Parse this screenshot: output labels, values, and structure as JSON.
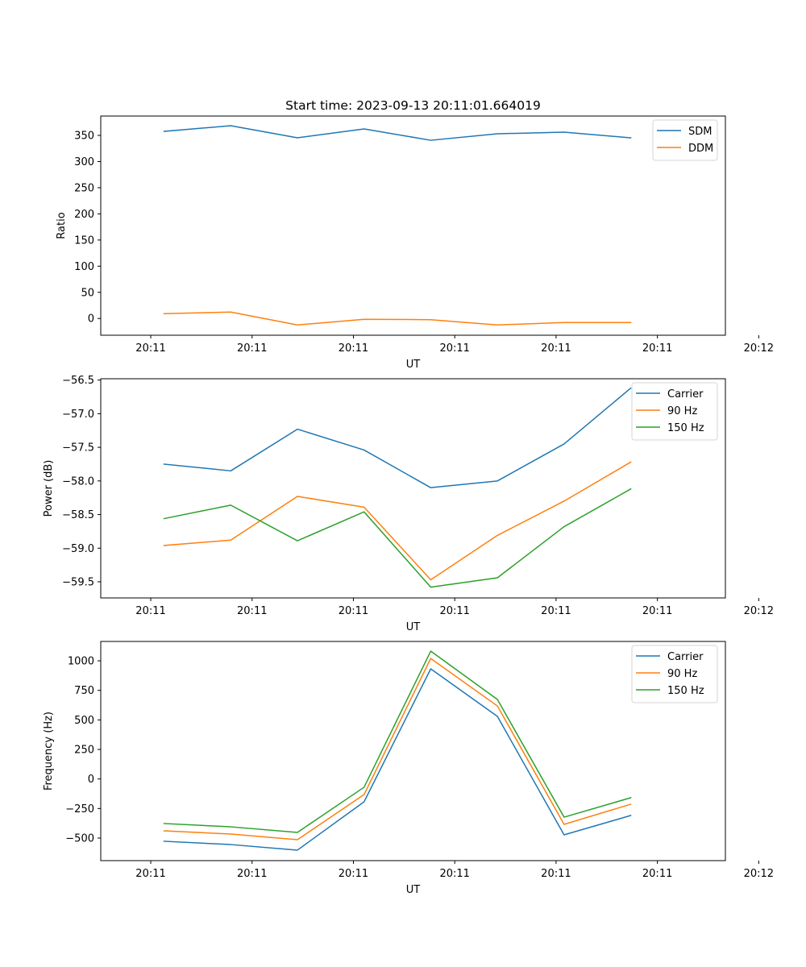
{
  "figure": {
    "title": "Start time: 2023-09-13 20:11:01.664019"
  },
  "colors": {
    "blue": "#1f77b4",
    "orange": "#ff7f0e",
    "green": "#2ca02c"
  },
  "chart_data": [
    {
      "type": "line",
      "title": "Start time: 2023-09-13 20:11:01.664019",
      "xlabel": "UT",
      "ylabel": "Ratio",
      "x_index": [
        0,
        1,
        2,
        3,
        4,
        5,
        6,
        7
      ],
      "x_ticks": [
        -0.2,
        1.32,
        2.84,
        4.36,
        5.88,
        7.4,
        8.92
      ],
      "x_tick_labels": [
        "20:11",
        "20:11",
        "20:11",
        "20:11",
        "20:11",
        "20:11",
        "20:12"
      ],
      "xlim": [
        -0.95,
        8.42
      ],
      "y_ticks": [
        0,
        50,
        100,
        150,
        200,
        250,
        300,
        350
      ],
      "y_tick_labels": [
        "0",
        "50",
        "100",
        "150",
        "200",
        "250",
        "300",
        "350"
      ],
      "ylim": [
        -32,
        387
      ],
      "grid": false,
      "legend_position": "top-right",
      "series": [
        {
          "name": "SDM",
          "color": "#1f77b4",
          "values": [
            357.7,
            368.5,
            345.4,
            362.4,
            340.7,
            353.1,
            356.2,
            345.4
          ]
        },
        {
          "name": "DDM",
          "color": "#ff7f0e",
          "values": [
            9.3,
            12.3,
            -12.3,
            -1.5,
            -2.3,
            -12.3,
            -7.7,
            -7.7
          ]
        }
      ]
    },
    {
      "type": "line",
      "title": "",
      "xlabel": "UT",
      "ylabel": "Power (dB)",
      "x_index": [
        0,
        1,
        2,
        3,
        4,
        5,
        6,
        7
      ],
      "x_ticks": [
        -0.2,
        1.32,
        2.84,
        4.36,
        5.88,
        7.4,
        8.92
      ],
      "x_tick_labels": [
        "20:11",
        "20:11",
        "20:11",
        "20:11",
        "20:11",
        "20:11",
        "20:12"
      ],
      "xlim": [
        -0.95,
        8.42
      ],
      "y_ticks": [
        -59.5,
        -59.0,
        -58.5,
        -58.0,
        -57.5,
        -57.0,
        -56.5
      ],
      "y_tick_labels": [
        "−59.5",
        "−59.0",
        "−58.5",
        "−58.0",
        "−57.5",
        "−57.0",
        "−56.5"
      ],
      "ylim": [
        -59.74,
        -56.48
      ],
      "grid": false,
      "legend_position": "top-right",
      "series": [
        {
          "name": "Carrier",
          "color": "#1f77b4",
          "values": [
            -57.75,
            -57.85,
            -57.23,
            -57.54,
            -58.1,
            -58.0,
            -57.45,
            -56.62
          ]
        },
        {
          "name": "90 Hz",
          "color": "#ff7f0e",
          "values": [
            -58.96,
            -58.88,
            -58.23,
            -58.39,
            -59.47,
            -58.81,
            -58.3,
            -57.72
          ]
        },
        {
          "name": "150 Hz",
          "color": "#2ca02c",
          "values": [
            -58.56,
            -58.36,
            -58.89,
            -58.46,
            -59.58,
            -59.44,
            -58.68,
            -58.12
          ]
        }
      ]
    },
    {
      "type": "line",
      "title": "",
      "xlabel": "UT",
      "ylabel": "Frequency (Hz)",
      "x_index": [
        0,
        1,
        2,
        3,
        4,
        5,
        6,
        7
      ],
      "x_ticks": [
        -0.2,
        1.32,
        2.84,
        4.36,
        5.88,
        7.4,
        8.92
      ],
      "x_tick_labels": [
        "20:11",
        "20:11",
        "20:11",
        "20:11",
        "20:11",
        "20:11",
        "20:12"
      ],
      "xlim": [
        -0.95,
        8.42
      ],
      "y_ticks": [
        -500,
        -250,
        0,
        250,
        500,
        750,
        1000
      ],
      "y_tick_labels": [
        "−500",
        "−250",
        "0",
        "250",
        "500",
        "750",
        "1000"
      ],
      "ylim": [
        -691,
        1164
      ],
      "grid": false,
      "legend_position": "top-right",
      "series": [
        {
          "name": "Carrier",
          "color": "#1f77b4",
          "values": [
            -527,
            -555,
            -602,
            -193,
            932,
            530,
            -473,
            -309
          ]
        },
        {
          "name": "90 Hz",
          "color": "#ff7f0e",
          "values": [
            -439,
            -466,
            -514,
            -132,
            1020,
            618,
            -384,
            -214
          ]
        },
        {
          "name": "150 Hz",
          "color": "#2ca02c",
          "values": [
            -377,
            -405,
            -452,
            -70,
            1082,
            673,
            -323,
            -159
          ]
        }
      ]
    }
  ]
}
